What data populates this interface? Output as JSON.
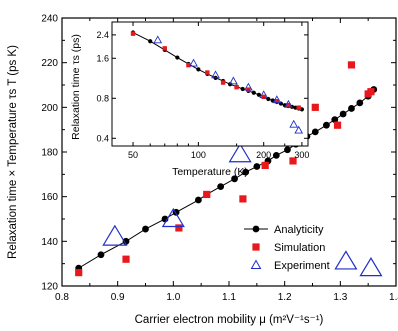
{
  "colors": {
    "analyticity": "#000000",
    "simulation": "#e8191c",
    "experiment": "#1f2fc8"
  },
  "chart_data": [
    {
      "type": "scatter",
      "title": "",
      "xlabel": "Carrier electron mobility μ (m²V⁻¹s⁻¹)",
      "ylabel": "Relaxation time × Temperature τs T (ps K)",
      "xlim": [
        0.8,
        1.4
      ],
      "ylim": [
        120,
        240
      ],
      "xticks": [
        "0.8",
        "0.9",
        "1.0",
        "1.1",
        "1.2",
        "1.3",
        "1.4"
      ],
      "yticks": [
        "120",
        "140",
        "160",
        "180",
        "200",
        "220",
        "240"
      ],
      "legend": "bottom-right",
      "series": [
        {
          "name": "Analyticity",
          "marker": "filled-circle-line",
          "x": [
            0.83,
            0.87,
            0.915,
            0.95,
            0.985,
            1.005,
            1.045,
            1.06,
            1.085,
            1.11,
            1.13,
            1.15,
            1.17,
            1.185,
            1.205,
            1.22,
            1.24,
            1.255,
            1.275,
            1.29,
            1.305,
            1.32,
            1.335,
            1.35,
            1.36
          ],
          "y": [
            128,
            134,
            140,
            145.5,
            150,
            153,
            158.5,
            161,
            164.5,
            168,
            171,
            173.5,
            176,
            178.5,
            181,
            183.5,
            187,
            189,
            192,
            194.5,
            197,
            199.5,
            202,
            205,
            208
          ]
        },
        {
          "name": "Simulation",
          "marker": "filled-square",
          "x": [
            0.83,
            0.915,
            1.01,
            1.06,
            1.125,
            1.165,
            1.215,
            1.255,
            1.295,
            1.32,
            1.355,
            1.35
          ],
          "y": [
            126,
            132,
            146,
            161,
            159,
            174,
            176,
            200,
            192,
            219,
            207,
            206
          ]
        },
        {
          "name": "Experiment",
          "marker": "open-triangle-varying-size",
          "x": [
            0.895,
            1.0,
            1.12,
            1.21,
            1.31,
            1.355
          ],
          "y": [
            142,
            150,
            179,
            187,
            131,
            128
          ]
        }
      ]
    },
    {
      "type": "scatter",
      "title": "",
      "xlabel": "Temperature (K)",
      "ylabel": "Relaxation time τs (ps)",
      "xscale": "log",
      "yscale": "log",
      "xlim": [
        40,
        320
      ],
      "ylim": [
        0.35,
        3.0
      ],
      "xticks": [
        "50",
        "100",
        "200",
        "300"
      ],
      "yticks": [
        "0.4",
        "0.8",
        "1.6",
        "2.4"
      ],
      "legend": "none",
      "series": [
        {
          "name": "Analyticity",
          "marker": "filled-circle-line",
          "x": [
            50,
            60,
            70,
            80,
            90,
            100,
            110,
            120,
            130,
            140,
            150,
            160,
            170,
            180,
            190,
            200,
            210,
            220,
            230,
            240,
            250,
            260,
            270,
            280,
            290,
            300
          ],
          "y": [
            2.5,
            2.15,
            1.85,
            1.62,
            1.45,
            1.32,
            1.22,
            1.14,
            1.08,
            1.02,
            0.98,
            0.94,
            0.91,
            0.88,
            0.85,
            0.82,
            0.79,
            0.77,
            0.75,
            0.73,
            0.71,
            0.7,
            0.69,
            0.68,
            0.67,
            0.66
          ]
        },
        {
          "name": "Simulation",
          "marker": "filled-square",
          "x": [
            50,
            70,
            90,
            110,
            130,
            150,
            170,
            200,
            230,
            260,
            290
          ],
          "y": [
            2.45,
            1.9,
            1.42,
            1.25,
            1.05,
            0.97,
            0.93,
            0.82,
            0.76,
            0.71,
            0.68
          ]
        },
        {
          "name": "Experiment",
          "marker": "open-triangle",
          "x": [
            65,
            95,
            120,
            145,
            170,
            200,
            230,
            260,
            275,
            290
          ],
          "y": [
            2.2,
            1.47,
            1.2,
            1.08,
            0.97,
            0.85,
            0.78,
            0.72,
            0.51,
            0.46
          ]
        }
      ]
    }
  ]
}
